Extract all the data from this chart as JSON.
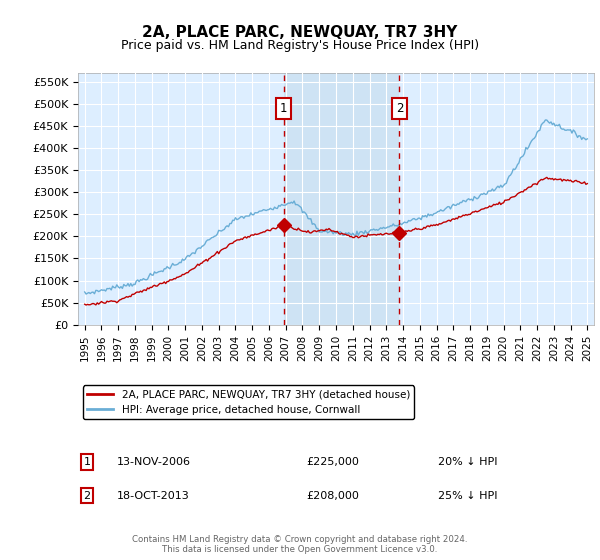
{
  "title": "2A, PLACE PARC, NEWQUAY, TR7 3HY",
  "subtitle": "Price paid vs. HM Land Registry's House Price Index (HPI)",
  "ylim": [
    0,
    570000
  ],
  "yticks": [
    0,
    50000,
    100000,
    150000,
    200000,
    250000,
    300000,
    350000,
    400000,
    450000,
    500000,
    550000
  ],
  "ytick_labels": [
    "£0",
    "£50K",
    "£100K",
    "£150K",
    "£200K",
    "£250K",
    "£300K",
    "£350K",
    "£400K",
    "£450K",
    "£500K",
    "£550K"
  ],
  "hpi_color": "#6aaed6",
  "property_color": "#c00000",
  "sale1_date_num": 2006.87,
  "sale1_price": 225000,
  "sale1_label": "1",
  "sale1_date_str": "13-NOV-2006",
  "sale1_pct": "20% ↓ HPI",
  "sale2_date_num": 2013.79,
  "sale2_price": 208000,
  "sale2_label": "2",
  "sale2_date_str": "18-OCT-2013",
  "sale2_pct": "25% ↓ HPI",
  "legend_line1": "2A, PLACE PARC, NEWQUAY, TR7 3HY (detached house)",
  "legend_line2": "HPI: Average price, detached house, Cornwall",
  "footer": "Contains HM Land Registry data © Crown copyright and database right 2024.\nThis data is licensed under the Open Government Licence v3.0.",
  "background_color": "#ddeeff",
  "grid_color": "#cccccc",
  "shade_color": "#c8dff0",
  "xlim_start": 1994.6,
  "xlim_end": 2025.4
}
